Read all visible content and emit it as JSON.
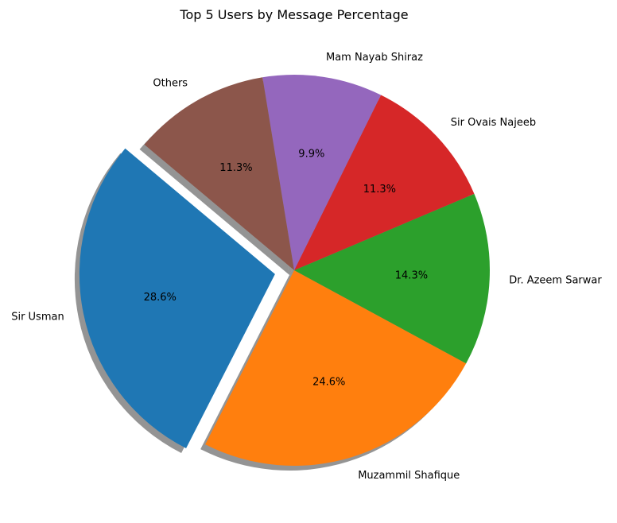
{
  "chart_data": {
    "type": "pie",
    "title": "Top 5 Users by Message Percentage",
    "labels": [
      "Sir Usman",
      "Muzammil Shafique",
      "Dr. Azeem Sarwar",
      "Sir Ovais Najeeb",
      "Mam Nayab Shiraz",
      "Others"
    ],
    "values": [
      28.6,
      24.6,
      14.3,
      11.3,
      9.9,
      11.3
    ],
    "percent_labels": [
      "28.6%",
      "24.6%",
      "14.3%",
      "11.3%",
      "9.9%",
      "11.3%"
    ],
    "colors": [
      "#1f77b4",
      "#ff7f0e",
      "#2ca02c",
      "#d62728",
      "#9467bd",
      "#8c564b"
    ],
    "explode": [
      0.1,
      0,
      0,
      0,
      0,
      0
    ],
    "start_angle_deg": 140,
    "shadow": true
  }
}
